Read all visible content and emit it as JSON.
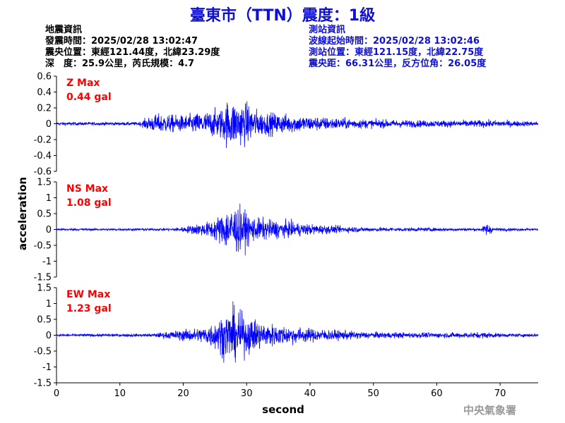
{
  "title": "臺東市（TTN）震度：1級",
  "quake_info": {
    "heading": "地震資訊",
    "time": "發震時間：2025/02/28 13:02:47",
    "epicenter": "震央位置：東經121.44度，北緯23.29度",
    "depth_mag": "深　度：25.9公里，芮氏規模：4.7"
  },
  "station_info": {
    "heading": "測站資訊",
    "wave_start": "波線起始時間：2025/02/28 13:02:46",
    "location": "測站位置：東經121.15度，北緯22.75度",
    "distance": "震央距：66.31公里，反方位角：26.05度"
  },
  "agency": "中央氣象署",
  "colors": {
    "trace": "#0000ff",
    "title": "#1010d0",
    "max_label": "#ff0000"
  },
  "chart_data": [
    {
      "type": "line",
      "component": "Z",
      "max_label": "Z Max",
      "max_value": "0.44 gal",
      "ylim": [
        -0.6,
        0.6
      ],
      "yticks": [
        -0.6,
        -0.4,
        -0.2,
        0,
        0.2,
        0.4,
        0.6
      ],
      "ytick_labels": [
        "-0.6",
        "-0.4",
        "-0.2",
        "0",
        "0.2",
        "0.4",
        "0.6"
      ]
    },
    {
      "type": "line",
      "component": "NS",
      "max_label": "NS Max",
      "max_value": "1.08 gal",
      "ylim": [
        -1.5,
        1.5
      ],
      "yticks": [
        -1.5,
        -1,
        -0.5,
        0,
        0.5,
        1,
        1.5
      ],
      "ytick_labels": [
        "-1.5",
        "-1",
        "-0.5",
        "0",
        "0.5",
        "1",
        "1.5"
      ]
    },
    {
      "type": "line",
      "component": "EW",
      "max_label": "EW Max",
      "max_value": "1.23 gal",
      "ylim": [
        -1.5,
        1.5
      ],
      "yticks": [
        -1.5,
        -1,
        -0.5,
        0,
        0.5,
        1,
        1.5
      ],
      "ytick_labels": [
        "-1.5",
        "-1",
        "-0.5",
        "0",
        "0.5",
        "1",
        "1.5"
      ]
    }
  ],
  "xaxis": {
    "label": "second",
    "xlim": [
      0,
      76
    ],
    "ticks": [
      0,
      10,
      20,
      30,
      40,
      50,
      60,
      70
    ],
    "tick_labels": [
      "0",
      "10",
      "20",
      "30",
      "40",
      "50",
      "60",
      "70"
    ]
  },
  "ylabel": "acceleration"
}
